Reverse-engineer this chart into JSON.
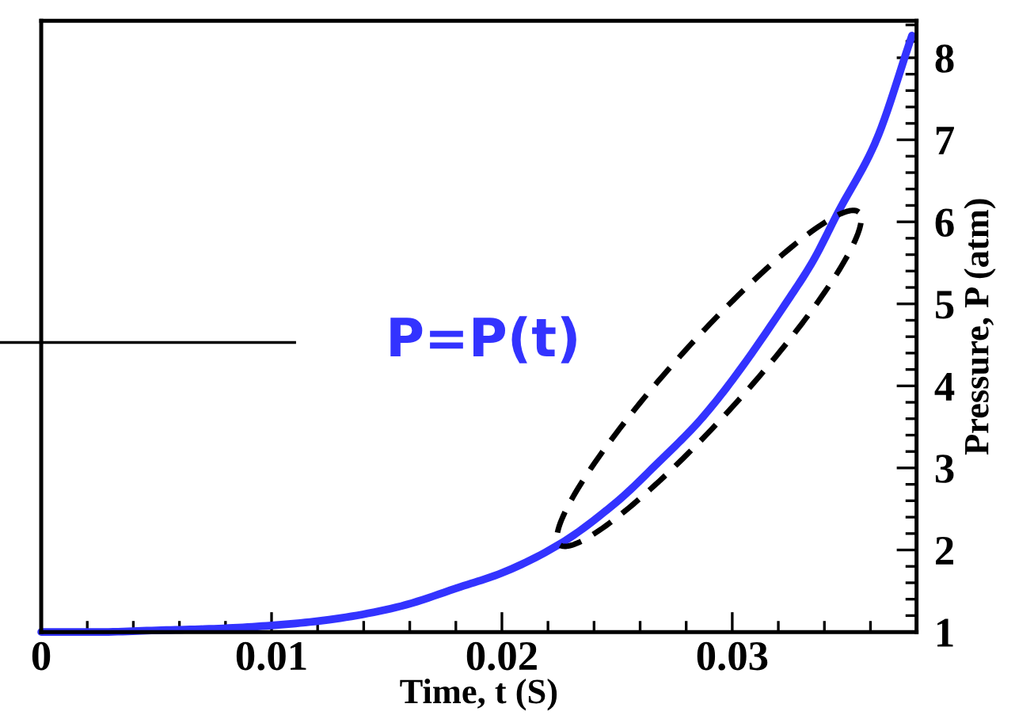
{
  "chart_data": {
    "type": "line",
    "xlabel": "Time, t (S)",
    "ylabel": "Pressure, P (atm)",
    "x": [
      0,
      0.0025,
      0.005,
      0.0075,
      0.01,
      0.0125,
      0.0154,
      0.0182,
      0.02,
      0.0225,
      0.025,
      0.0268,
      0.0285,
      0.03,
      0.0325,
      0.0335,
      0.0346,
      0.0362,
      0.0378
    ],
    "series": [
      {
        "name": "P=P(t)",
        "color": "#3333ff",
        "values": [
          1.0,
          1.0,
          1.02,
          1.04,
          1.08,
          1.15,
          1.3,
          1.55,
          1.72,
          2.07,
          2.59,
          3.07,
          3.55,
          4.07,
          5.08,
          5.52,
          6.12,
          6.96,
          8.27
        ]
      }
    ],
    "xlim": [
      0,
      0.038
    ],
    "ylim": [
      1,
      8.45
    ],
    "xticks": [
      0,
      0.01,
      0.02,
      0.03
    ],
    "yticks": [
      1,
      2,
      3,
      4,
      5,
      6,
      7,
      8
    ],
    "ref_lines": [
      {
        "axis": "y",
        "value": 4.53,
        "color": "#000000"
      }
    ],
    "grid": false,
    "legend": false,
    "line_style": "solid",
    "marker": "none"
  }
}
